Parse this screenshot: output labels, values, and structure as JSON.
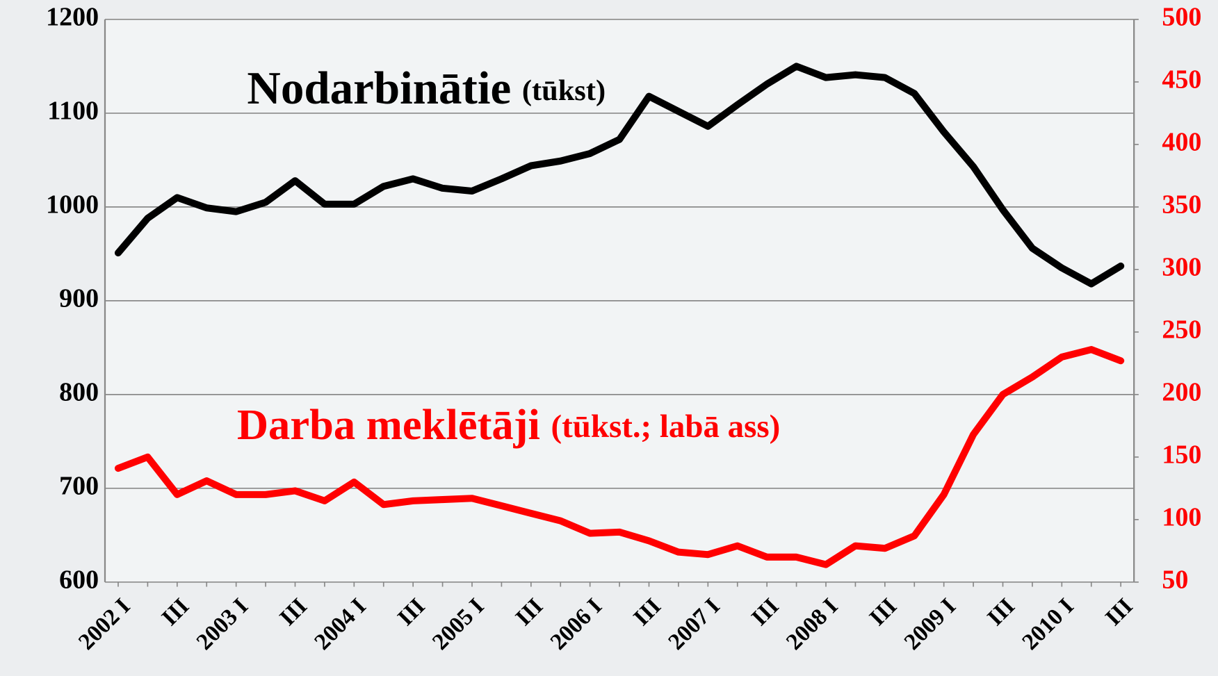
{
  "chart_data": {
    "type": "line",
    "categories": [
      "2002 I",
      null,
      "III",
      null,
      "2003 I",
      null,
      "III",
      null,
      "2004 I",
      null,
      "III",
      null,
      "2005 I",
      null,
      "III",
      null,
      "2006 I",
      null,
      "III",
      null,
      "2007 I",
      null,
      "III",
      null,
      "2008 I",
      null,
      "III",
      null,
      "2009 I",
      null,
      "III",
      null,
      "2010 I",
      null,
      "III"
    ],
    "series": [
      {
        "name": "Nodarbinātie",
        "unit": "(tūkst)",
        "color": "#000000",
        "axis": "y",
        "values": [
          951,
          988,
          1010,
          999,
          995,
          1005,
          1028,
          1003,
          1003,
          1022,
          1030,
          1020,
          1017,
          1030,
          1044,
          1049,
          1057,
          1072,
          1118,
          1102,
          1086,
          1109,
          1131,
          1150,
          1138,
          1141,
          1138,
          1121,
          1080,
          1043,
          997,
          956,
          935,
          918,
          937
        ]
      },
      {
        "name": "Darba meklētāji",
        "unit": "(tūkst.; labā ass)",
        "color": "#ff0000",
        "axis": "y2",
        "values": [
          141,
          150,
          120,
          131,
          120,
          120,
          123,
          115,
          130,
          112,
          115,
          116,
          117,
          111,
          105,
          99,
          89,
          90,
          83,
          74,
          72,
          79,
          70,
          70,
          64,
          79,
          77,
          87,
          120,
          168,
          200,
          214,
          230,
          236,
          227
        ]
      }
    ],
    "ylim": [
      600,
      1200
    ],
    "yticks": [
      600,
      700,
      800,
      900,
      1000,
      1100,
      1200
    ],
    "y2lim": [
      50,
      500
    ],
    "y2ticks": [
      50,
      100,
      150,
      200,
      250,
      300,
      350,
      400,
      450,
      500
    ],
    "grid": true
  }
}
